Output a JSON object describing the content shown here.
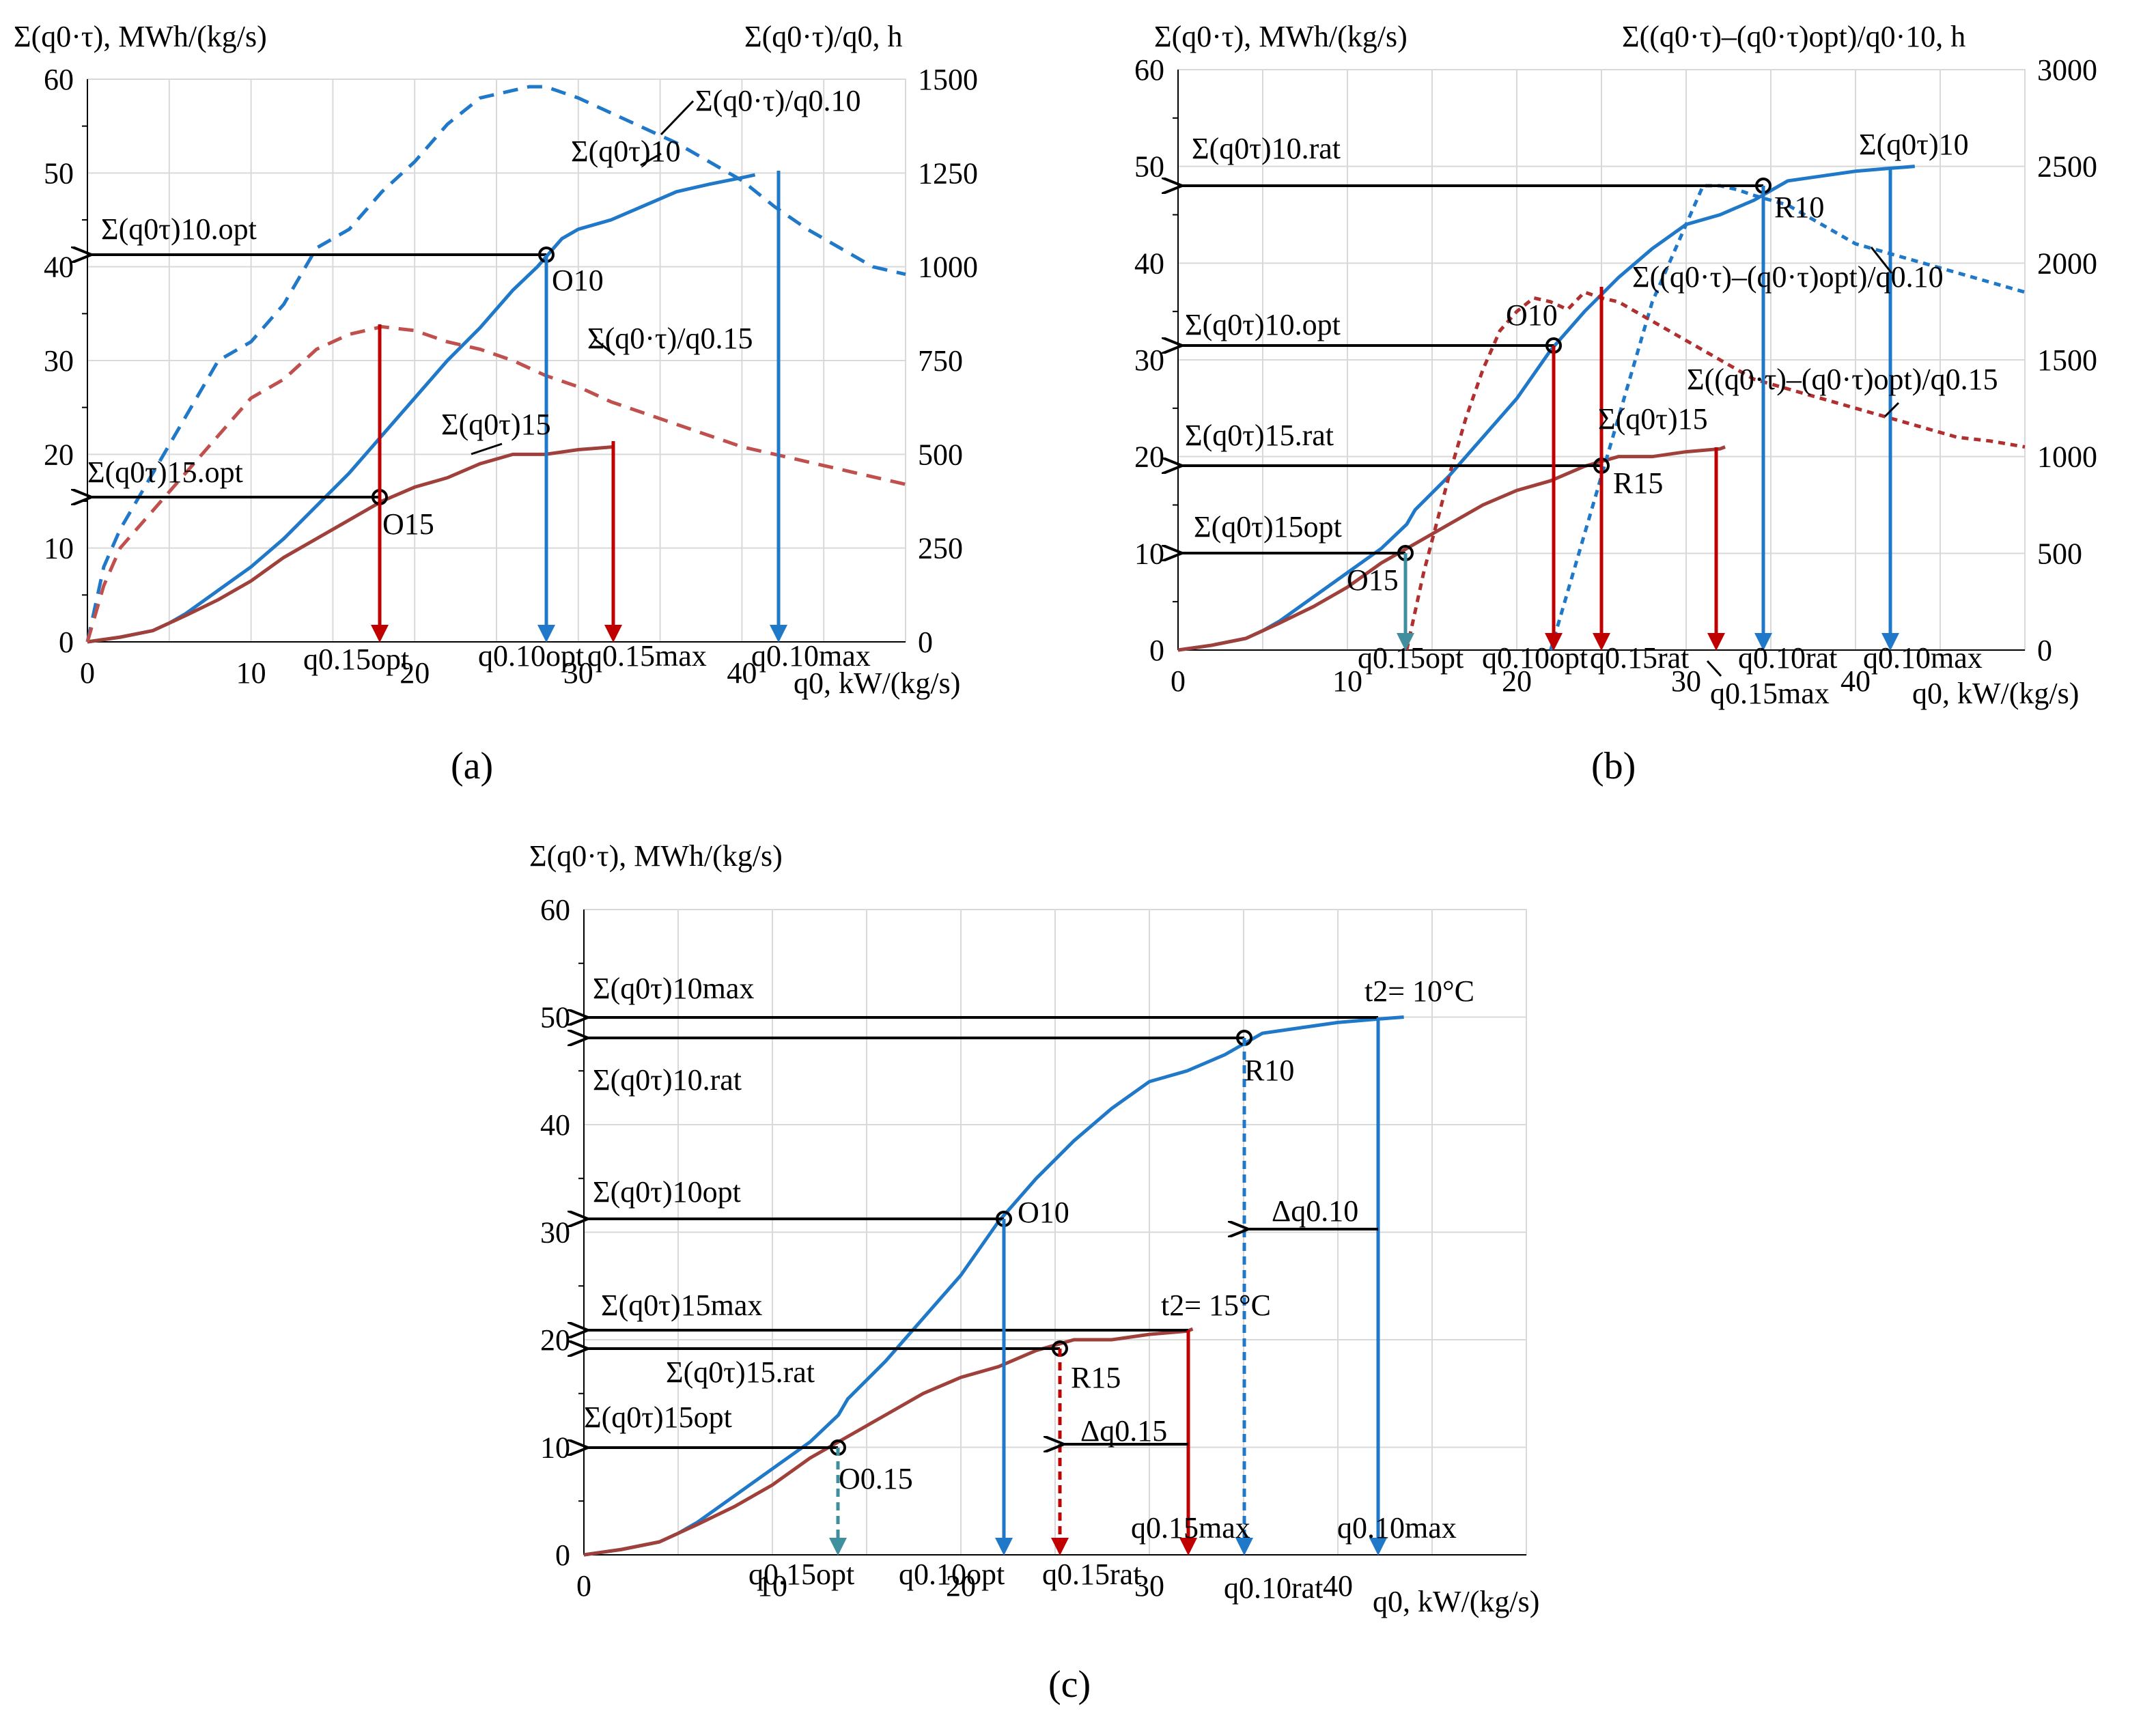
{
  "colors": {
    "blue": "#1f78c8",
    "red": "#b03030",
    "brown": "#a0403a",
    "dashed_red": "#c0504d",
    "teal": "#3f8f9f",
    "black": "#000000"
  },
  "chart_data": [
    {
      "id": "a",
      "type": "line",
      "panel_label": "a",
      "title": "",
      "ylabel_left": "Σ(q0·τ), MWh/(kg/s)",
      "ylabel_right": "Σ(q0·τ)/q0, h",
      "xlabel": "q0, kW/(kg/s)",
      "xlim": [
        0,
        50
      ],
      "ylim_left": [
        0,
        60
      ],
      "ylim_right": [
        0,
        1500
      ],
      "xticks": [
        0,
        10,
        20,
        30,
        40
      ],
      "yticks_left": [
        0,
        10,
        20,
        30,
        40,
        50,
        60
      ],
      "yticks_right": [
        0,
        250,
        500,
        750,
        1000,
        1250,
        1500
      ],
      "series": [
        {
          "name": "Σ(q0τ)10",
          "axis": "left",
          "color": "blue",
          "style": "solid",
          "x": [
            0,
            2,
            4,
            5,
            6,
            8,
            10,
            12,
            14,
            16,
            18,
            20,
            22,
            24,
            26,
            27.5,
            28,
            29,
            30,
            32,
            34,
            36,
            38,
            40,
            40.8
          ],
          "y": [
            0,
            0.5,
            1.2,
            2,
            3,
            5.5,
            8,
            11,
            14.5,
            18,
            22,
            26,
            30,
            33.5,
            37.5,
            40,
            41,
            43,
            44,
            45,
            46.5,
            48,
            48.8,
            49.5,
            49.8
          ]
        },
        {
          "name": "Σ(q0τ)15",
          "axis": "left",
          "color": "brown",
          "style": "solid",
          "x": [
            0,
            2,
            4,
            5,
            6,
            8,
            10,
            12,
            14,
            16,
            18,
            20,
            22,
            24,
            26,
            28,
            30,
            32.2
          ],
          "y": [
            0,
            0.5,
            1.2,
            2,
            2.8,
            4.5,
            6.5,
            9,
            11,
            13,
            15,
            16.5,
            17.5,
            19,
            20,
            20,
            20.5,
            20.8
          ]
        },
        {
          "name": "Σ(q0·τ)/q0.10",
          "axis": "right",
          "color": "blue",
          "style": "dashed",
          "x": [
            0,
            1,
            2,
            4,
            6,
            8,
            10,
            12,
            14,
            16,
            18,
            20,
            22,
            24,
            25,
            26,
            27,
            28,
            30,
            32,
            34,
            36,
            38,
            40,
            42,
            44,
            46,
            48,
            50
          ],
          "y": [
            0,
            200,
            300,
            450,
            600,
            750,
            800,
            900,
            1050,
            1100,
            1200,
            1280,
            1380,
            1450,
            1460,
            1470,
            1480,
            1480,
            1450,
            1410,
            1370,
            1330,
            1280,
            1230,
            1160,
            1100,
            1050,
            1000,
            980
          ]
        },
        {
          "name": "Σ(q0·τ)/q0.15",
          "axis": "right",
          "color": "dashed_red",
          "style": "dashed",
          "x": [
            0,
            1,
            2,
            4,
            6,
            8,
            10,
            12,
            14,
            16,
            18,
            20,
            22,
            24,
            26,
            28,
            30,
            32,
            34,
            36,
            38,
            40,
            42,
            44,
            46,
            48,
            50
          ],
          "y": [
            0,
            150,
            250,
            350,
            450,
            550,
            650,
            700,
            780,
            820,
            840,
            830,
            800,
            780,
            750,
            710,
            680,
            640,
            610,
            580,
            550,
            520,
            500,
            480,
            460,
            440,
            420
          ]
        }
      ],
      "annotations": [
        "Σ(q0τ)10.opt",
        "Σ(q0τ)15.opt",
        "O10",
        "O15",
        "Σ(q0·τ)/q0.10",
        "Σ(q0·τ)/q0.15",
        "Σ(q0τ)10",
        "Σ(q0τ)15",
        "q0.15opt",
        "q0.10opt",
        "q0.15max",
        "q0.10max"
      ]
    },
    {
      "id": "b",
      "type": "line",
      "panel_label": "b",
      "ylabel_left": "Σ(q0·τ), MWh/(kg/s)",
      "ylabel_right": "Σ((q0·τ)–(q0·τ)opt)/q0·10, h",
      "xlabel": "q0, kW/(kg/s)",
      "xlim": [
        0,
        50
      ],
      "ylim_left": [
        0,
        60
      ],
      "ylim_right": [
        0,
        3000
      ],
      "xticks": [
        0,
        10,
        20,
        30,
        40
      ],
      "yticks_left": [
        0,
        10,
        20,
        30,
        40,
        50,
        60
      ],
      "yticks_right": [
        0,
        500,
        1000,
        1500,
        2000,
        2500,
        3000
      ],
      "series": [
        {
          "name": "Σ(q0τ)10",
          "axis": "left",
          "color": "blue",
          "style": "solid",
          "x": [
            0,
            2,
            4,
            5,
            6,
            8,
            10,
            12,
            13.5,
            14,
            16,
            18,
            20,
            22,
            24,
            26,
            28,
            30,
            32,
            34,
            35,
            36,
            38,
            40,
            42,
            43.5
          ],
          "y": [
            0,
            0.5,
            1.2,
            2,
            3,
            5.5,
            8,
            10.5,
            13,
            14.5,
            18,
            22,
            26,
            31,
            35,
            38.5,
            41.5,
            44,
            45,
            46.5,
            47.5,
            48.5,
            49,
            49.5,
            49.8,
            50
          ]
        },
        {
          "name": "Σ(q0τ)15",
          "axis": "left",
          "color": "brown",
          "style": "solid",
          "x": [
            0,
            2,
            4,
            5,
            6,
            8,
            10,
            12,
            14,
            16,
            18,
            20,
            22,
            24,
            26,
            28,
            30,
            32,
            32.3
          ],
          "y": [
            0,
            0.5,
            1.2,
            2,
            2.8,
            4.5,
            6.5,
            9,
            11,
            13,
            15,
            16.5,
            17.5,
            19,
            20,
            20,
            20.5,
            20.8,
            21
          ]
        },
        {
          "name": "Σ((q0·τ)–(q0·τ)opt)/q0.10",
          "axis": "right",
          "color": "blue",
          "style": "dashed",
          "x": [
            22,
            24,
            26,
            28,
            30,
            31,
            32,
            33,
            34,
            36,
            38,
            40,
            42,
            44,
            46,
            48,
            50
          ],
          "y": [
            0,
            600,
            1200,
            1800,
            2200,
            2400,
            2400,
            2380,
            2350,
            2300,
            2200,
            2100,
            2050,
            2000,
            1950,
            1900,
            1850
          ]
        },
        {
          "name": "Σ((q0·τ)–(q0·τ)opt)/q0.15",
          "axis": "right",
          "color": "red",
          "style": "dashed",
          "x": [
            13.5,
            14.5,
            16,
            17,
            18,
            19,
            20,
            21,
            22,
            23,
            24,
            25,
            26,
            28,
            30,
            32,
            34,
            36,
            38,
            40,
            42,
            44,
            46,
            48,
            50
          ],
          "y": [
            0,
            400,
            900,
            1200,
            1450,
            1650,
            1750,
            1820,
            1800,
            1760,
            1850,
            1820,
            1800,
            1700,
            1600,
            1500,
            1400,
            1350,
            1300,
            1250,
            1200,
            1150,
            1100,
            1080,
            1050
          ]
        }
      ],
      "annotations": [
        "Σ(q0τ)10.rat",
        "Σ(q0τ)10.opt",
        "Σ(q0τ)15.rat",
        "Σ(q0τ)15opt",
        "O10",
        "O15",
        "R10",
        "R15",
        "Σ(q0τ)10",
        "Σ(q0τ)15",
        "Σ((q0·τ)–(q0·τ)opt)/q0.10",
        "Σ((q0·τ)–(q0·τ)opt)/q0.15",
        "q0.15opt",
        "q0.10opt",
        "q0.15rat",
        "q0.15max",
        "q0.10rat",
        "q0.10max"
      ]
    },
    {
      "id": "c",
      "type": "line",
      "panel_label": "c",
      "ylabel_left": "Σ(q0·τ), MWh/(kg/s)",
      "xlabel": "q0, kW/(kg/s)",
      "xlim": [
        0,
        50
      ],
      "ylim_left": [
        0,
        60
      ],
      "xticks": [
        0,
        10,
        20,
        30,
        40
      ],
      "yticks_left": [
        0,
        10,
        20,
        30,
        40,
        50,
        60
      ],
      "series": [
        {
          "name": "t2 = 10°C",
          "axis": "left",
          "color": "blue",
          "style": "solid",
          "x": [
            0,
            2,
            4,
            5,
            6,
            8,
            10,
            12,
            13.5,
            14,
            16,
            18,
            20,
            22,
            24,
            26,
            28,
            30,
            32,
            34,
            35,
            36,
            38,
            40,
            42,
            43.5
          ],
          "y": [
            0,
            0.5,
            1.2,
            2,
            3,
            5.5,
            8,
            10.5,
            13,
            14.5,
            18,
            22,
            26,
            31,
            35,
            38.5,
            41.5,
            44,
            45,
            46.5,
            47.5,
            48.5,
            49,
            49.5,
            49.8,
            50
          ]
        },
        {
          "name": "t2 = 15°C",
          "axis": "left",
          "color": "brown",
          "style": "solid",
          "x": [
            0,
            2,
            4,
            5,
            6,
            8,
            10,
            12,
            14,
            16,
            18,
            20,
            22,
            24,
            26,
            28,
            30,
            32,
            32.3
          ],
          "y": [
            0,
            0.5,
            1.2,
            2,
            2.8,
            4.5,
            6.5,
            9,
            11,
            13,
            15,
            16.5,
            17.5,
            19,
            20,
            20,
            20.5,
            20.8,
            21
          ]
        }
      ],
      "annotations": [
        "Σ(q0τ)10max",
        "Σ(q0τ)10.rat",
        "Σ(q0τ)10opt",
        "Σ(q0τ)15max",
        "Σ(q0τ)15.rat",
        "Σ(q0τ)15opt",
        "t2= 10°C",
        "t2= 15°C",
        "R10",
        "R15",
        "O10",
        "O0.15",
        "Δq0.10",
        "Δq0.15",
        "q0.15opt",
        "q0.10opt",
        "q0.15rat",
        "q0.15max",
        "q0.10rat",
        "q0.10max"
      ]
    }
  ],
  "labels": {
    "a": {
      "ylabel_left": "Σ(q0·τ), MWh/(kg/s)",
      "ylabel_right": "Σ(q0·τ)/q0, h",
      "xlabel": "q0, kW/(kg/s)",
      "panel": "(a)",
      "opt10": "Σ(q0τ)10.opt",
      "opt15": "Σ(q0τ)15.opt",
      "O10": "O10",
      "O15": "O15",
      "ratio10": "Σ(q0·τ)/q0.10",
      "ratio15": "Σ(q0·τ)/q0.15",
      "sum10": "Σ(q0τ)10",
      "sum15": "Σ(q0τ)15",
      "q015opt": "q0.15opt",
      "q010opt": "q0.10opt",
      "q015max": "q0.15max",
      "q010max": "q0.10max"
    },
    "b": {
      "ylabel_left": "Σ(q0·τ), MWh/(kg/s)",
      "ylabel_right": "Σ((q0·τ)–(q0·τ)opt)/q0·10, h",
      "xlabel": "q0, kW/(kg/s)",
      "panel": "(b)",
      "rat10": "Σ(q0τ)10.rat",
      "opt10": "Σ(q0τ)10.opt",
      "rat15": "Σ(q0τ)15.rat",
      "opt15": "Σ(q0τ)15opt",
      "O10": "O10",
      "O15": "O15",
      "R10": "R10",
      "R15": "R15",
      "sum10": "Σ(q0τ)10",
      "sum15": "Σ(q0τ)15",
      "diff10": "Σ((q0·τ)–(q0·τ)opt)/q0.10",
      "diff15": "Σ((q0·τ)–(q0·τ)opt)/q0.15",
      "q015opt": "q0.15opt",
      "q010opt": "q0.10opt",
      "q015rat": "q0.15rat",
      "q015max": "q0.15max",
      "q010rat": "q0.10rat",
      "q010max": "q0.10max"
    },
    "c": {
      "ylabel_left": "Σ(q0·τ), MWh/(kg/s)",
      "xlabel": "q0, kW/(kg/s)",
      "panel": "(c)",
      "max10": "Σ(q0τ)10max",
      "rat10": "Σ(q0τ)10.rat",
      "opt10": "Σ(q0τ)10opt",
      "max15": "Σ(q0τ)15max",
      "rat15": "Σ(q0τ)15.rat",
      "opt15": "Σ(q0τ)15opt",
      "t10": "t2= 10°C",
      "t15": "t2= 15°C",
      "R10": "R10",
      "R15": "R15",
      "O10": "O10",
      "O015": "O0.15",
      "dq10": "Δq0.10",
      "dq15": "Δq0.15",
      "q015opt": "q0.15opt",
      "q010opt": "q0.10opt",
      "q015rat": "q0.15rat",
      "q015max": "q0.15max",
      "q010rat": "q0.10rat",
      "q010max": "q0.10max"
    }
  }
}
